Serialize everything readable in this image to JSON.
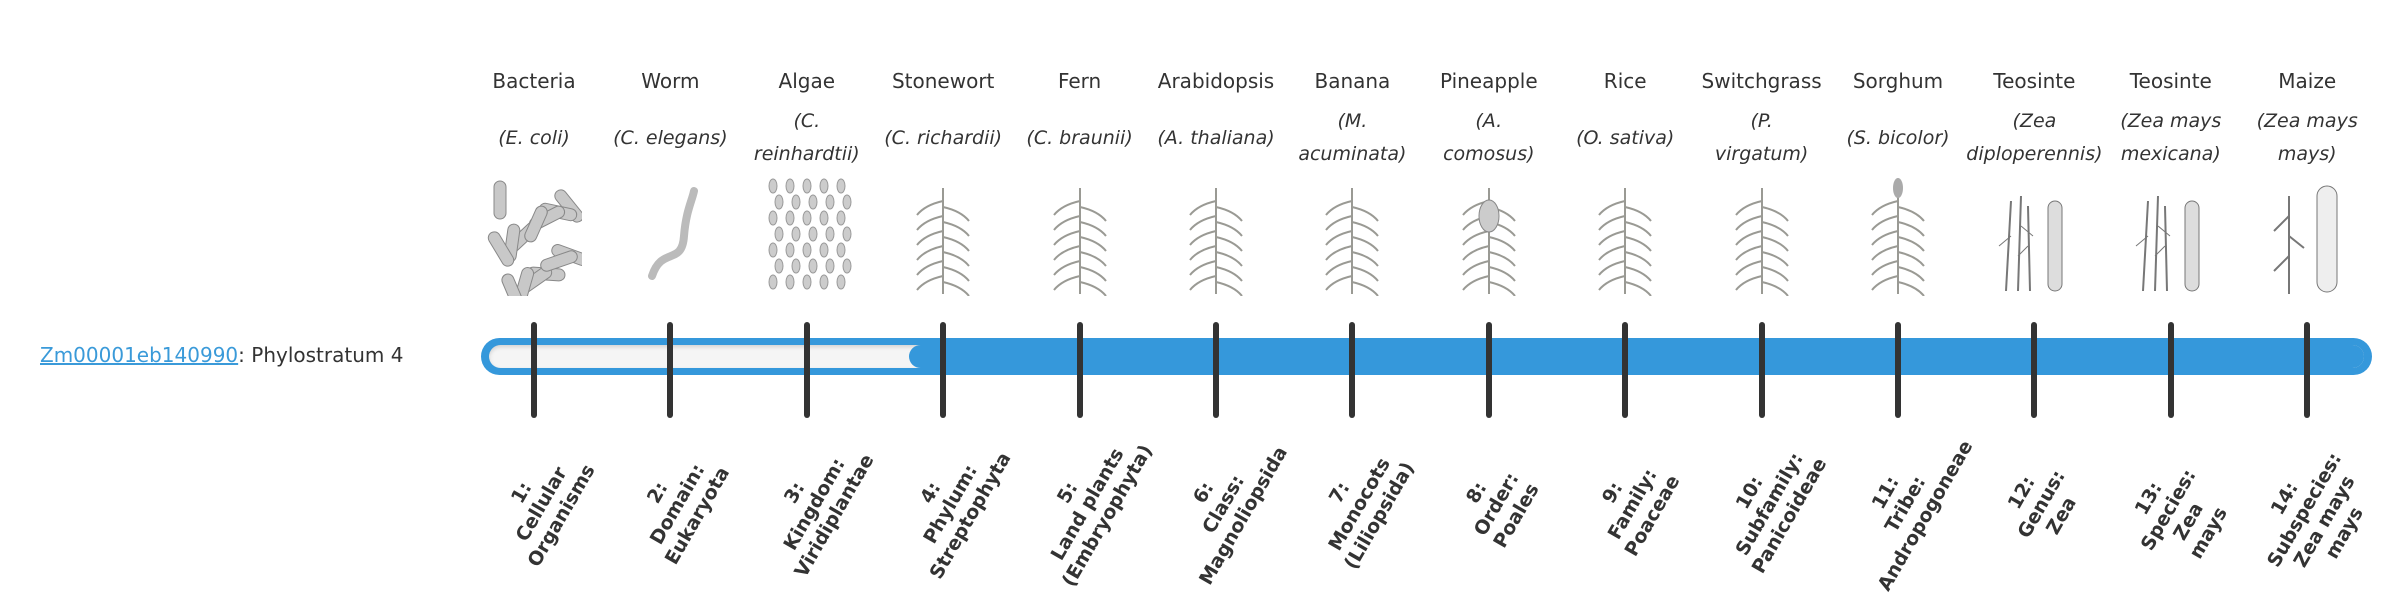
{
  "gene": {
    "id": "Zm00001eb140990",
    "suffix": ": Phylostratum 4"
  },
  "phylostratum": {
    "value": 4,
    "total": 14
  },
  "colors": {
    "accent": "#3598db",
    "link": "#3a9ad9",
    "tick": "#333333",
    "track": "#f5f5f5"
  },
  "organisms": [
    {
      "common": "Bacteria",
      "sci": [
        "(E. coli)"
      ],
      "icon": "bacteria-icon"
    },
    {
      "common": "Worm",
      "sci": [
        "(C. elegans)"
      ],
      "icon": "worm-icon"
    },
    {
      "common": "Algae",
      "sci": [
        "(C.",
        "reinhardtii)"
      ],
      "icon": "algae-icon"
    },
    {
      "common": "Stonewort",
      "sci": [
        "(C. richardii)"
      ],
      "icon": "stonewort-icon"
    },
    {
      "common": "Fern",
      "sci": [
        "(C. braunii)"
      ],
      "icon": "fern-icon"
    },
    {
      "common": "Arabidopsis",
      "sci": [
        "(A. thaliana)"
      ],
      "icon": "arabidopsis-icon"
    },
    {
      "common": "Banana",
      "sci": [
        "(M.",
        "acuminata)"
      ],
      "icon": "banana-icon"
    },
    {
      "common": "Pineapple",
      "sci": [
        "(A.",
        "comosus)"
      ],
      "icon": "pineapple-icon"
    },
    {
      "common": "Rice",
      "sci": [
        "(O. sativa)"
      ],
      "icon": "rice-icon"
    },
    {
      "common": "Switchgrass",
      "sci": [
        "(P.",
        "virgatum)"
      ],
      "icon": "switchgrass-icon"
    },
    {
      "common": "Sorghum",
      "sci": [
        "(S. bicolor)"
      ],
      "icon": "sorghum-icon"
    },
    {
      "common": "Teosinte",
      "sci": [
        "(Zea",
        "diploperennis)"
      ],
      "icon": "teosinte-icon"
    },
    {
      "common": "Teosinte",
      "sci": [
        "(Zea mays",
        "mexicana)"
      ],
      "icon": "teosinte-icon"
    },
    {
      "common": "Maize",
      "sci": [
        "(Zea mays",
        "mays)"
      ],
      "icon": "maize-icon"
    }
  ],
  "strata": [
    {
      "lines": [
        "1:",
        "Cellular",
        "Organisms"
      ]
    },
    {
      "lines": [
        "2:",
        "Domain:",
        "Eukaryota"
      ]
    },
    {
      "lines": [
        "3:",
        "Kingdom:",
        "Viridiplantae"
      ]
    },
    {
      "lines": [
        "4:",
        "Phylum:",
        "Streptophyta"
      ]
    },
    {
      "lines": [
        "5:",
        "Land plants",
        "(Embryophyta)"
      ]
    },
    {
      "lines": [
        "6:",
        "Class:",
        "Magnoliopsida"
      ]
    },
    {
      "lines": [
        "7:",
        "Monocots",
        "(Liliopsida)"
      ]
    },
    {
      "lines": [
        "8:",
        "Order:",
        "Poales"
      ]
    },
    {
      "lines": [
        "9:",
        "Family:",
        "Poaceae"
      ]
    },
    {
      "lines": [
        "10:",
        "Subfamily:",
        "Panicoideae"
      ]
    },
    {
      "lines": [
        "11:",
        "Tribe:",
        "Andropogoneae"
      ]
    },
    {
      "lines": [
        "12:",
        "Genus:",
        "Zea"
      ]
    },
    {
      "lines": [
        "13:",
        "Species:",
        "Zea",
        "mays"
      ]
    },
    {
      "lines": [
        "14:",
        "Subspecies:",
        "Zea mays",
        "mays"
      ]
    }
  ]
}
